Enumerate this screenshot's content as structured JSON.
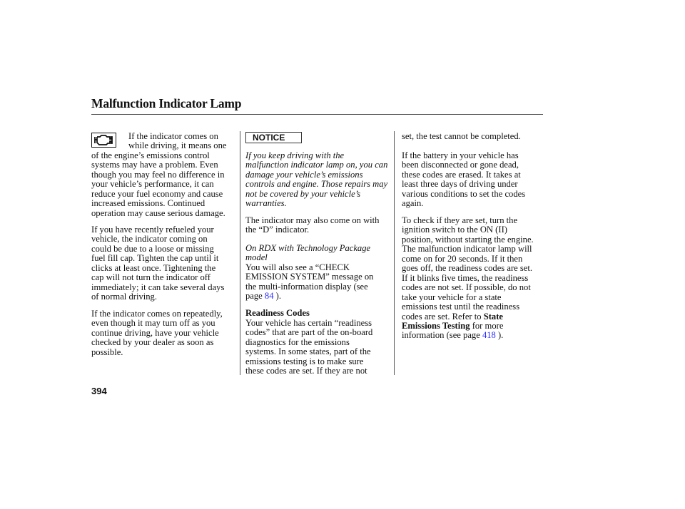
{
  "header": {
    "title": "Malfunction Indicator Lamp"
  },
  "icons": {
    "lamp": "check-engine-icon"
  },
  "col1": {
    "p1": [
      "If the indicator comes on",
      "while driving, it means one",
      "of the engine’s emissions control",
      "systems may have a problem. Even",
      "though you may feel no difference in",
      "your vehicle’s performance, it can",
      "reduce your fuel economy and cause",
      "increased emissions. Continued",
      "operation may cause serious damage."
    ],
    "p2": [
      "If you have recently refueled your",
      "vehicle, the indicator coming on",
      "could be due to a loose or missing",
      "fuel fill cap. Tighten the cap until it",
      "clicks at least once. Tightening the",
      "cap will not turn the indicator off",
      "immediately; it can take several days",
      "of normal driving."
    ],
    "p3": [
      "If the indicator comes on repeatedly,",
      "even though it may turn off as you",
      "continue driving, have your vehicle",
      "checked by your dealer as soon as",
      "possible."
    ]
  },
  "col2": {
    "notice_label": "NOTICE",
    "notice": [
      "If you keep driving with the",
      "malfunction indicator lamp on, you can",
      "damage your vehicle’s emissions",
      "controls and engine. Those repairs may",
      "not be covered by your vehicle’s",
      "warranties."
    ],
    "p1": [
      "The indicator may also come on with",
      "the “D” indicator."
    ],
    "model_note": [
      "On RDX with Technology Package",
      "model"
    ],
    "p2": [
      "You will also see a “CHECK",
      "EMISSION SYSTEM” message on",
      "the multi-information display (see"
    ],
    "p2_page_prefix": "page ",
    "p2_page_link": "84",
    "p2_page_suffix": " ).",
    "readiness_heading": "Readiness Codes",
    "p3": [
      "Your vehicle has certain “readiness",
      "codes” that are part of the on-board",
      "diagnostics for the emissions",
      "systems. In some states, part of the",
      "emissions testing is to make sure",
      "these codes are set. If they are not"
    ]
  },
  "col3": {
    "p1": [
      "set, the test cannot be completed."
    ],
    "p2": [
      "If the battery in your vehicle has",
      "been disconnected or gone dead,",
      "these codes are erased. It takes at",
      "least three days of driving under",
      "various conditions to set the codes",
      "again."
    ],
    "p3": [
      "To check if they are set, turn the",
      "ignition switch to the ON (II)",
      "position, without starting the engine.",
      "The malfunction indicator lamp will",
      "come on for 20 seconds. If it then",
      "goes off, the readiness codes are set.",
      "If it blinks five times, the readiness",
      "codes are not set. If possible, do not",
      "take your vehicle for a state",
      "emissions test until the readiness"
    ],
    "p3_tail_a": "codes are set. Refer to ",
    "p3_bold_a": "State",
    "p3_bold_b": "Emissions Testing",
    "p3_tail_b": " for more",
    "p3_tail_c": "information (see page ",
    "p3_link": "418",
    "p3_tail_d": " )."
  },
  "footer": {
    "page_number": "394"
  }
}
